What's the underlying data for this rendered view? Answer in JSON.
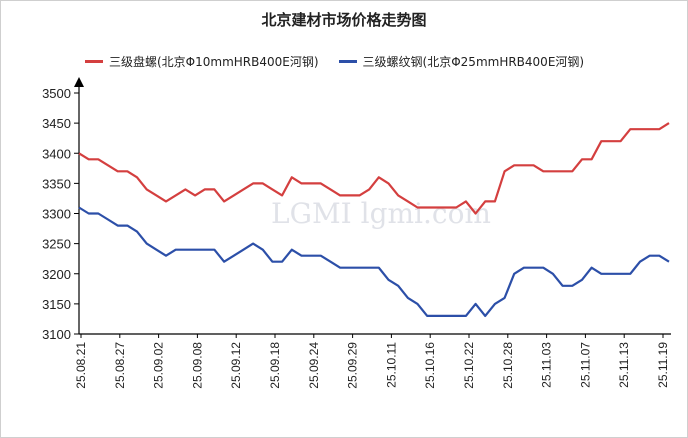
{
  "chart_data": {
    "type": "line",
    "title": "北京建材市场价格走势图",
    "xlabel": "",
    "ylabel": "",
    "ylim": [
      3100,
      3500
    ],
    "yticks": [
      3100,
      3150,
      3200,
      3250,
      3300,
      3350,
      3400,
      3450,
      3500
    ],
    "grid": false,
    "legend_position": "top",
    "watermark": "LGMI  lgmi.com",
    "x_tick_labels": [
      "25.08.21",
      "25.08.27",
      "25.09.02",
      "25.09.08",
      "25.09.12",
      "25.09.18",
      "25.09.24",
      "25.09.29",
      "25.10.11",
      "25.10.16",
      "25.10.22",
      "25.10.28",
      "25.11.03",
      "25.11.07",
      "25.11.13",
      "25.11.19"
    ],
    "series": [
      {
        "name": "三级盘螺(北京Φ10mmHRB400E河钢)",
        "color": "#d43f3f",
        "values": [
          3400,
          3390,
          3390,
          3380,
          3370,
          3370,
          3360,
          3340,
          3330,
          3320,
          3330,
          3340,
          3330,
          3340,
          3340,
          3320,
          3330,
          3340,
          3350,
          3350,
          3340,
          3330,
          3360,
          3350,
          3350,
          3350,
          3340,
          3330,
          3330,
          3330,
          3340,
          3360,
          3350,
          3330,
          3320,
          3310,
          3310,
          3310,
          3310,
          3310,
          3320,
          3300,
          3320,
          3320,
          3370,
          3380,
          3380,
          3380,
          3370,
          3370,
          3370,
          3370,
          3390,
          3390,
          3420,
          3420,
          3420,
          3440,
          3440,
          3440,
          3440,
          3450
        ]
      },
      {
        "name": "三级螺纹钢(北京Φ25mmHRB400E河钢)",
        "color": "#2c4fa8",
        "values": [
          3310,
          3300,
          3300,
          3290,
          3280,
          3280,
          3270,
          3250,
          3240,
          3230,
          3240,
          3240,
          3240,
          3240,
          3240,
          3220,
          3230,
          3240,
          3250,
          3240,
          3220,
          3220,
          3240,
          3230,
          3230,
          3230,
          3220,
          3210,
          3210,
          3210,
          3210,
          3210,
          3190,
          3180,
          3160,
          3150,
          3130,
          3130,
          3130,
          3130,
          3130,
          3150,
          3130,
          3150,
          3160,
          3200,
          3210,
          3210,
          3210,
          3200,
          3180,
          3180,
          3190,
          3210,
          3200,
          3200,
          3200,
          3200,
          3220,
          3230,
          3230,
          3220
        ]
      }
    ]
  }
}
